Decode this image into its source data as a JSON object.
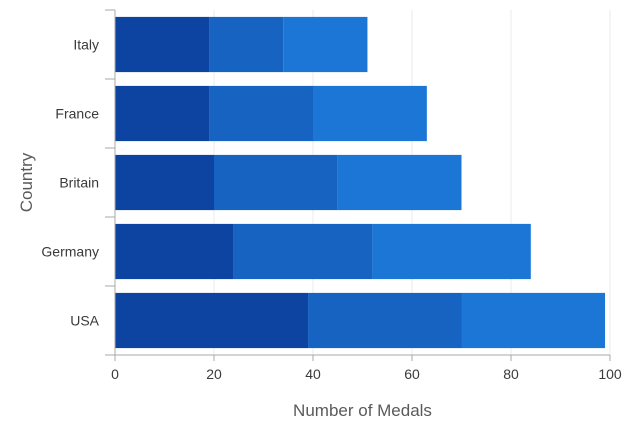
{
  "chart_data": {
    "type": "bar",
    "orientation": "horizontal",
    "stacked": true,
    "categories": [
      "USA",
      "Germany",
      "Britain",
      "France",
      "Italy"
    ],
    "series": [
      {
        "values": [
          39,
          24,
          20,
          19,
          19
        ],
        "color": "#0e44a1"
      },
      {
        "values": [
          31,
          28,
          25,
          21,
          15
        ],
        "color": "#1763c2"
      },
      {
        "values": [
          29,
          32,
          25,
          23,
          17
        ],
        "color": "#1b76d6"
      }
    ],
    "xlabel": "Number of Medals",
    "ylabel": "Country",
    "xlim": [
      0,
      100
    ],
    "xticks": [
      "0",
      "20",
      "40",
      "60",
      "80",
      "100"
    ],
    "grid": "vertical",
    "legend": "none"
  }
}
